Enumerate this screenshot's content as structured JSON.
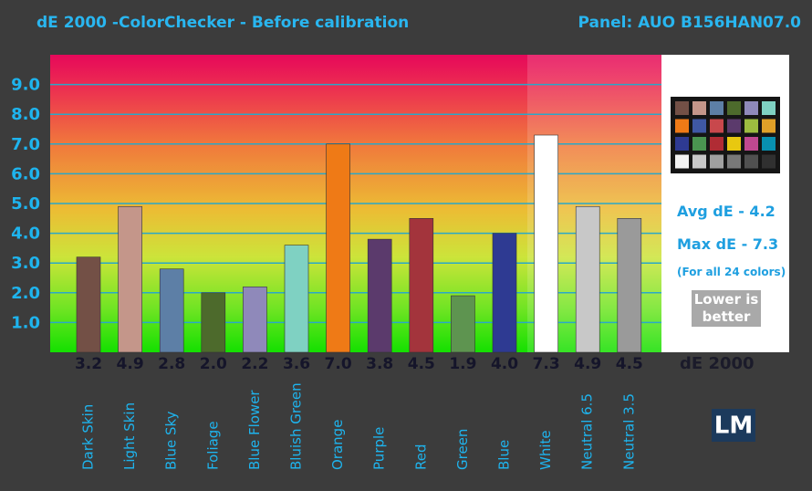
{
  "chart_data": {
    "type": "bar",
    "title": "dE 2000 -ColorChecker  - Before calibration",
    "subtitle": "Panel: AUO B156HAN07.0",
    "categories": [
      "Dark Skin",
      "Light Skin",
      "Blue Sky",
      "Foliage",
      "Blue Flower",
      "Bluish Green",
      "Orange",
      "Purple",
      "Red",
      "Green",
      "Blue",
      "White",
      "Neutral 6.5",
      "Neutral 3.5"
    ],
    "values": [
      3.2,
      4.9,
      2.8,
      2.0,
      2.2,
      3.6,
      7.0,
      3.8,
      4.5,
      1.9,
      4.0,
      7.3,
      4.9,
      4.5
    ],
    "value_labels": [
      "3.2",
      "4.9",
      "2.8",
      "2.0",
      "2.2",
      "3.6",
      "7.0",
      "3.8",
      "4.5",
      "1.9",
      "4.0",
      "7.3",
      "4.9",
      "4.5"
    ],
    "colors": [
      "#735046",
      "#c4968a",
      "#5d7fa6",
      "#4d6a2c",
      "#8f89ba",
      "#7fd1c2",
      "#ef7a16",
      "#5b3a6c",
      "#a3343c",
      "#5e9450",
      "#2e3a92",
      "#ffffff",
      "#c8c8c8",
      "#9a9a9a"
    ],
    "value_labels_title": "dE 2000",
    "ylim": [
      0,
      10
    ],
    "yticks": [
      {
        "value": 1,
        "label": "1.0"
      },
      {
        "value": 2,
        "label": "2.0"
      },
      {
        "value": 3,
        "label": "3.0"
      },
      {
        "value": 4,
        "label": "4.0"
      },
      {
        "value": 5,
        "label": "5.0"
      },
      {
        "value": 6,
        "label": "6.0"
      },
      {
        "value": 7,
        "label": "7.0"
      },
      {
        "value": 8,
        "label": "8.0"
      },
      {
        "value": 9,
        "label": "9.0"
      }
    ],
    "grid": true,
    "annotations": {
      "avg": "Avg dE - 4.2",
      "max": "Max dE - 7.3",
      "note": "(For all 24 colors)",
      "lower": "Lower is better",
      "logo": "LM"
    }
  }
}
